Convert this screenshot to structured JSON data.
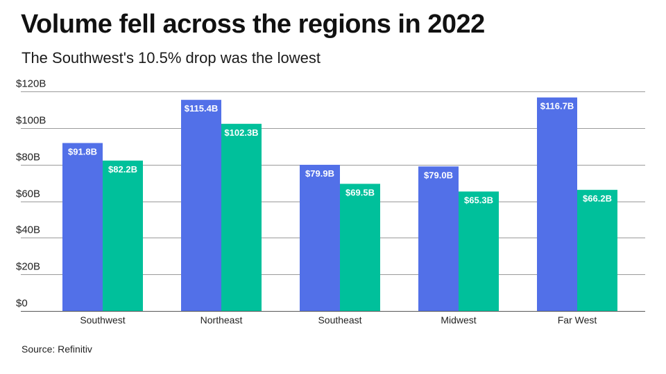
{
  "title": "Volume fell across the regions in 2022",
  "subtitle": "The Southwest's 10.5% drop was the lowest",
  "source": "Source: Refinitiv",
  "colors": {
    "series_1": "#5270e8",
    "series_2": "#00c09b",
    "grid": "#9a9a9a",
    "axis": "#555555"
  },
  "chart_data": {
    "type": "bar",
    "categories": [
      "Southwest",
      "Northeast",
      "Southeast",
      "Midwest",
      "Far West"
    ],
    "series": [
      {
        "values": [
          91.8,
          115.4,
          79.9,
          79.0,
          116.7
        ],
        "labels": [
          "$91.8B",
          "$115.4B",
          "$79.9B",
          "$79.0B",
          "$116.7B"
        ]
      },
      {
        "values": [
          82.2,
          102.3,
          69.5,
          65.3,
          66.2
        ],
        "labels": [
          "$82.2B",
          "$102.3B",
          "$69.5B",
          "$65.3B",
          "$66.2B"
        ]
      }
    ],
    "y_ticks": [
      0,
      20,
      40,
      60,
      80,
      100,
      120
    ],
    "y_tick_labels": [
      "$0",
      "$20B",
      "$40B",
      "$60B",
      "$80B",
      "$100B",
      "$120B"
    ],
    "ylim": [
      0,
      120
    ],
    "grid": true,
    "legend": "none"
  }
}
